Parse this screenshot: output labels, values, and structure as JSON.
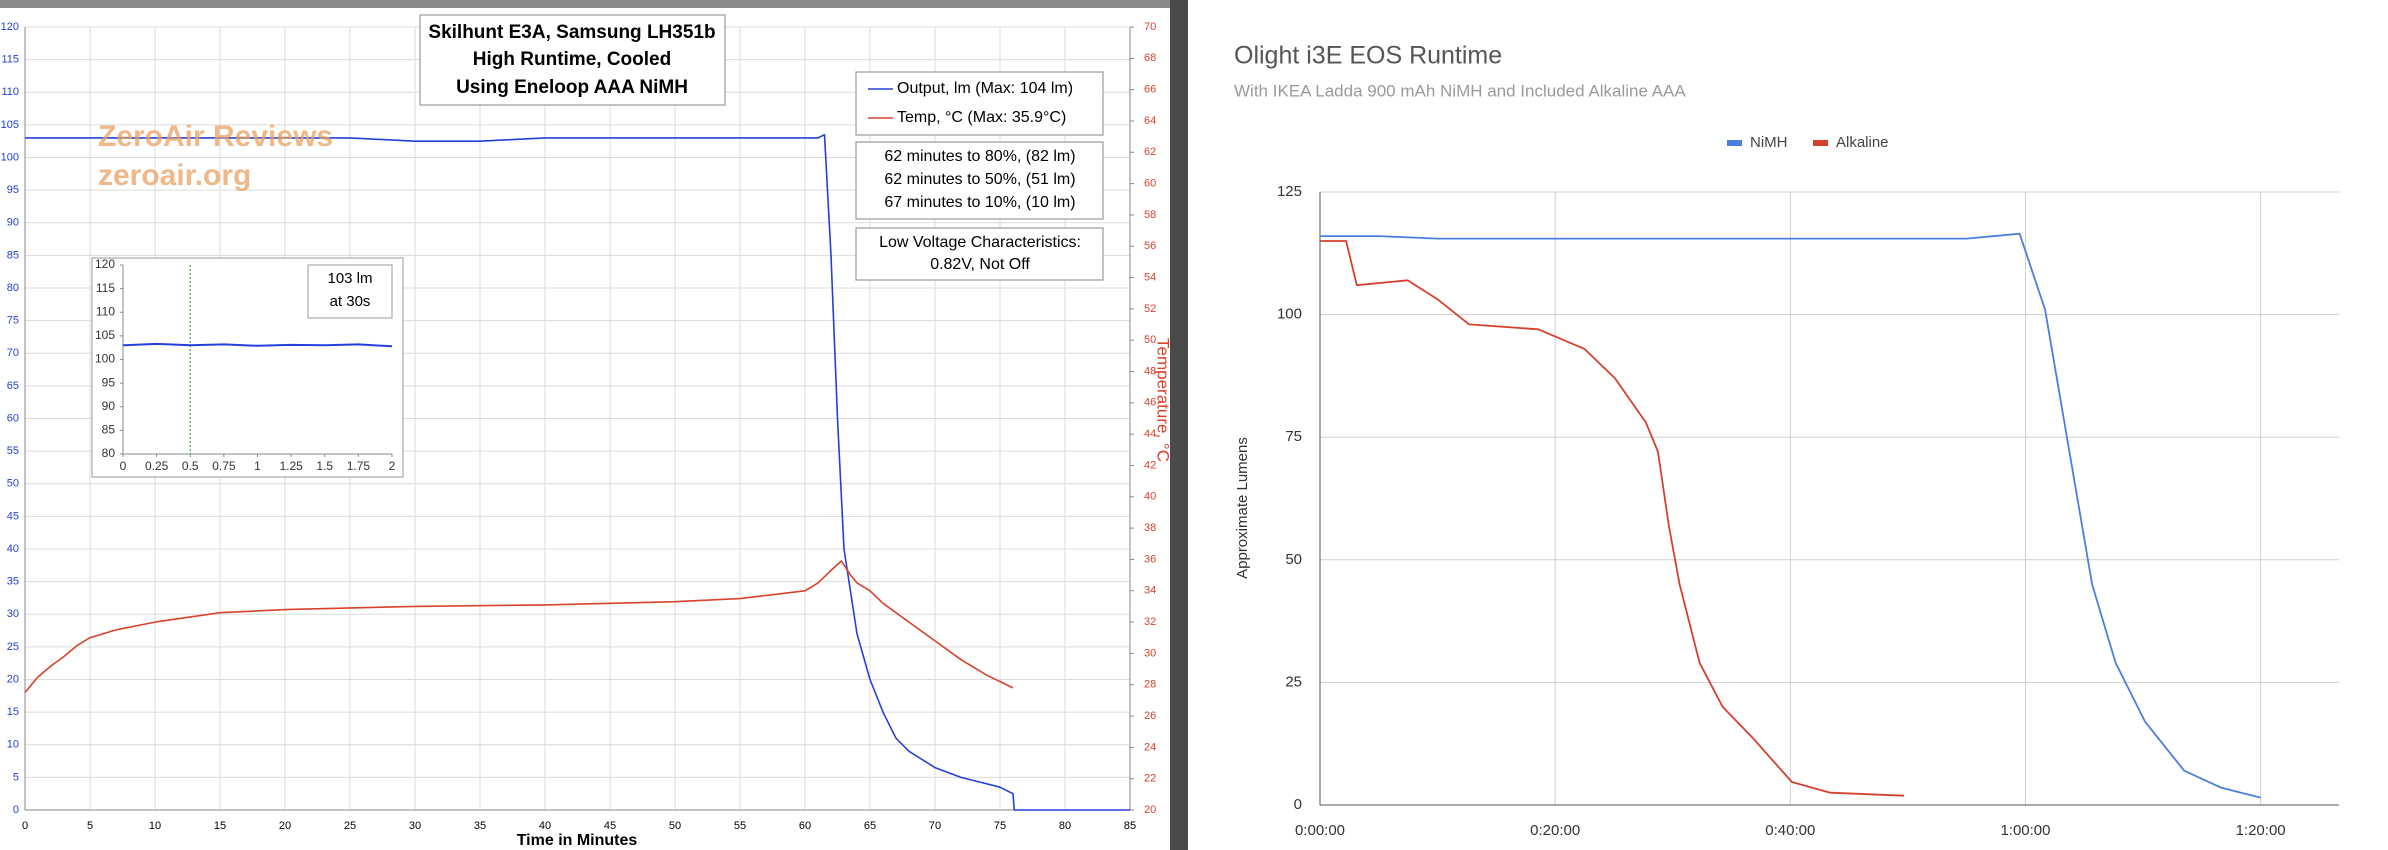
{
  "chart_data": [
    {
      "type": "line",
      "title": [
        "Skilhunt E3A, Samsung LH351b",
        "High Runtime, Cooled",
        "Using Eneloop AAA NiMH"
      ],
      "xlabel": "Time in Minutes",
      "y2label": "Temperature, °C",
      "watermark": [
        "ZeroAir Reviews",
        "zeroair.org"
      ],
      "annotations": [
        "62 minutes to 80%, (82 lm)",
        "62 minutes to 50%, (51 lm)",
        "67 minutes to 10%, (10 lm)"
      ],
      "notes": [
        "Low Voltage Characteristics:",
        "0.82V, Not Off"
      ],
      "xlim": [
        0,
        85
      ],
      "xticks": [
        0,
        5,
        10,
        15,
        20,
        25,
        30,
        35,
        40,
        45,
        50,
        55,
        60,
        65,
        70,
        75,
        80,
        85
      ],
      "ylim": [
        0,
        120
      ],
      "yticks": [
        0,
        5,
        10,
        15,
        20,
        25,
        30,
        35,
        40,
        45,
        50,
        55,
        60,
        65,
        70,
        75,
        80,
        85,
        90,
        95,
        100,
        105,
        110,
        115,
        120
      ],
      "y2lim": [
        20,
        70
      ],
      "y2ticks": [
        20,
        22,
        24,
        26,
        28,
        30,
        32,
        34,
        36,
        38,
        40,
        42,
        44,
        46,
        48,
        50,
        52,
        54,
        56,
        58,
        60,
        62,
        64,
        66,
        68,
        70
      ],
      "grid": true,
      "series": [
        {
          "name": "Output, lm (Max: 104 lm)",
          "color": "#2440d8",
          "x": [
            0,
            5,
            10,
            15,
            20,
            25,
            30,
            35,
            40,
            45,
            50,
            55,
            60,
            61,
            61.5,
            62,
            62.5,
            63,
            64,
            65,
            66,
            67,
            68,
            70,
            72,
            74,
            75,
            76,
            76.1,
            85
          ],
          "values": [
            103,
            103,
            103,
            103,
            103,
            103,
            102.5,
            102.5,
            103,
            103,
            103,
            103,
            103,
            103,
            103.5,
            85,
            60,
            40,
            27,
            20,
            15,
            11,
            9,
            6.5,
            5,
            4,
            3.5,
            2.5,
            0,
            0
          ]
        },
        {
          "name": "Temp, °C (Max: 35.9°C)",
          "color": "#d9412b",
          "axis": "y2",
          "x": [
            0,
            1,
            2,
            3,
            4,
            5,
            7,
            10,
            15,
            20,
            30,
            40,
            50,
            55,
            60,
            61,
            62,
            62.8,
            63.5,
            64,
            65,
            66,
            68,
            70,
            72,
            74,
            76
          ],
          "values": [
            27.5,
            28.5,
            29.2,
            29.8,
            30.5,
            31,
            31.5,
            32,
            32.6,
            32.8,
            33,
            33.1,
            33.3,
            33.5,
            34,
            34.5,
            35.3,
            35.9,
            35,
            34.5,
            34,
            33.2,
            32,
            30.8,
            29.6,
            28.6,
            27.8
          ]
        }
      ]
    },
    {
      "type": "line",
      "annotations": [
        "103 lm",
        "at 30s"
      ],
      "marker_x": 0.5,
      "xlim": [
        0,
        2
      ],
      "xticks": [
        0,
        0.25,
        0.5,
        0.75,
        1,
        1.25,
        1.5,
        1.75,
        2
      ],
      "ylim": [
        80,
        120
      ],
      "yticks": [
        80,
        85,
        90,
        95,
        100,
        105,
        110,
        115,
        120
      ],
      "grid": false,
      "series": [
        {
          "color": "#2440d8",
          "x": [
            0,
            0.25,
            0.5,
            0.75,
            1,
            1.25,
            1.5,
            1.75,
            2
          ],
          "values": [
            103,
            103.3,
            103,
            103.2,
            102.9,
            103.1,
            103,
            103.2,
            102.8
          ]
        }
      ]
    },
    {
      "type": "line",
      "title": "Olight i3E EOS Runtime",
      "subtitle": "With IKEA Ladda 900 mAh NiMH and Included Alkaline AAA",
      "ylabel": "Approximate Lumens",
      "xlim": [
        0,
        5200
      ],
      "xticks": [
        {
          "value": 0,
          "label": "0:00:00"
        },
        {
          "value": 1200,
          "label": "0:20:00"
        },
        {
          "value": 2400,
          "label": "0:40:00"
        },
        {
          "value": 3600,
          "label": "1:00:00"
        },
        {
          "value": 4800,
          "label": "1:20:00"
        }
      ],
      "ylim": [
        0,
        125
      ],
      "yticks": [
        0,
        25,
        50,
        75,
        100,
        125
      ],
      "grid": true,
      "legend": "top",
      "series": [
        {
          "name": "NiMH",
          "color": "#4a7fe0",
          "x": [
            0,
            300,
            600,
            900,
            1200,
            1500,
            1800,
            2100,
            2400,
            2700,
            3000,
            3300,
            3570,
            3700,
            3820,
            3940,
            4060,
            4210,
            4410,
            4600,
            4800
          ],
          "values": [
            116,
            116,
            115.5,
            115.5,
            115.5,
            115.5,
            115.5,
            115.5,
            115.5,
            115.5,
            115.5,
            115.5,
            116.5,
            101,
            73,
            45,
            29,
            17,
            7,
            3.5,
            1.5
          ]
        },
        {
          "name": "Alkaline",
          "color": "#d6402e",
          "x": [
            0,
            133,
            188,
            447,
            604,
            761,
            1114,
            1349,
            1506,
            1663,
            1725,
            1780,
            1835,
            1937,
            2055,
            2212,
            2408,
            2604,
            2980
          ],
          "values": [
            115,
            115,
            106,
            107,
            103,
            98,
            97,
            93,
            87,
            78,
            72,
            57,
            45,
            29,
            20,
            13.5,
            4.7,
            2.5,
            1.9
          ]
        }
      ]
    }
  ]
}
